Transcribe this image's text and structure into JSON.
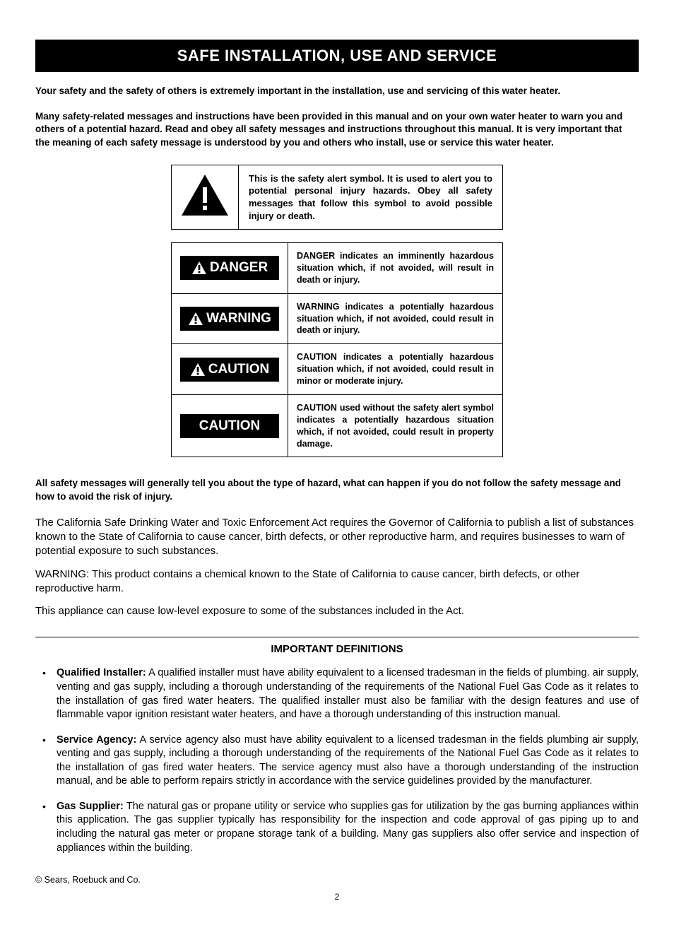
{
  "colors": {
    "background": "#ffffff",
    "text": "#000000",
    "title_bar_bg": "#000000",
    "title_bar_text": "#ffffff",
    "border": "#000000",
    "signal_box_bg": "#000000",
    "signal_box_text": "#ffffff"
  },
  "typography": {
    "base_family": "Arial, Helvetica, sans-serif",
    "title_size_pt": 22,
    "intro_size_pt": 13.5,
    "body_size_pt": 15,
    "signal_label_size_pt": 19,
    "signal_desc_size_pt": 12.5
  },
  "title": "SAFE INSTALLATION, USE AND SERVICE",
  "intro1": "Your safety and the safety of others is extremely important in the installation, use and servicing of this water heater.",
  "intro2": "Many safety-related messages and instructions have been provided in this manual and on your own water heater to warn you and others of a potential hazard.  Read and obey all safety messages and instructions throughout this manual.  It is very important that the meaning of each safety message is understood by you and others who install, use or service this water heater.",
  "alert_symbol_text": "This is the safety alert symbol.  It is used to alert you to potential personal injury hazards.  Obey all safety messages that follow this symbol to avoid possible injury or death.",
  "signal_words": [
    {
      "label": "DANGER",
      "has_icon": true,
      "desc": "DANGER indicates an imminently hazardous situation which, if not avoided, will result in death or injury."
    },
    {
      "label": "WARNING",
      "has_icon": true,
      "desc": "WARNING indicates a potentially hazardous situation which, if not avoided, could result in death or injury."
    },
    {
      "label": "CAUTION",
      "has_icon": true,
      "desc": "CAUTION  indicates a potentially hazardous situation which, if not avoided, could result in minor or moderate injury."
    },
    {
      "label": "CAUTION",
      "has_icon": false,
      "desc": "CAUTION used without the safety alert symbol indicates a potentially hazardous situation which, if not avoided, could result in property damage."
    }
  ],
  "after_table_bold": "All safety messages will generally tell you about the type of hazard, what can happen if you do not follow the safety message and how to avoid the risk of injury.",
  "para1": "The California Safe Drinking Water and Toxic Enforcement Act requires the Governor of California to publish a list of substances known to the State of California to cause cancer, birth defects, or other reproductive harm, and requires businesses to warn of potential exposure to such substances.",
  "para2": "WARNING:  This product contains a chemical known to the State of California to cause cancer, birth defects, or other reproductive harm.",
  "para3": "This appliance can cause low-level exposure to some of the substances included in the Act.",
  "definitions_heading": "IMPORTANT DEFINITIONS",
  "definitions": [
    {
      "term": "Qualified Installer:",
      "text": " A qualified installer must have ability equivalent to a licensed tradesman in the fields of plumbing. air supply, venting and gas supply, including a thorough understanding of the requirements of the National Fuel Gas Code as it relates to the installation of gas fired water heaters.  The qualified installer must also be familiar with the design features and use of flammable vapor ignition resistant water heaters, and have a thorough understanding of this instruction manual."
    },
    {
      "term": "Service Agency:",
      "text": " A service agency also must have ability equivalent to a licensed tradesman in the fields plumbing air supply, venting and gas supply, including a thorough understanding of the requirements of the National Fuel Gas Code as it relates to the installation of gas fired water heaters. The service agency must also have a thorough understanding of the instruction manual, and be able to perform repairs strictly in accordance with the service guidelines provided by the manufacturer."
    },
    {
      "term": "Gas Supplier:",
      "text": " The natural gas or propane utility or service who supplies gas for utilization by the gas burning appliances within this application. The gas supplier typically has responsibility for the inspection and code approval of gas piping up to and including the natural gas meter or propane storage tank of a building. Many gas suppliers also offer service and inspection of appliances within the building."
    }
  ],
  "copyright": "© Sears, Roebuck and Co.",
  "page_number": "2"
}
